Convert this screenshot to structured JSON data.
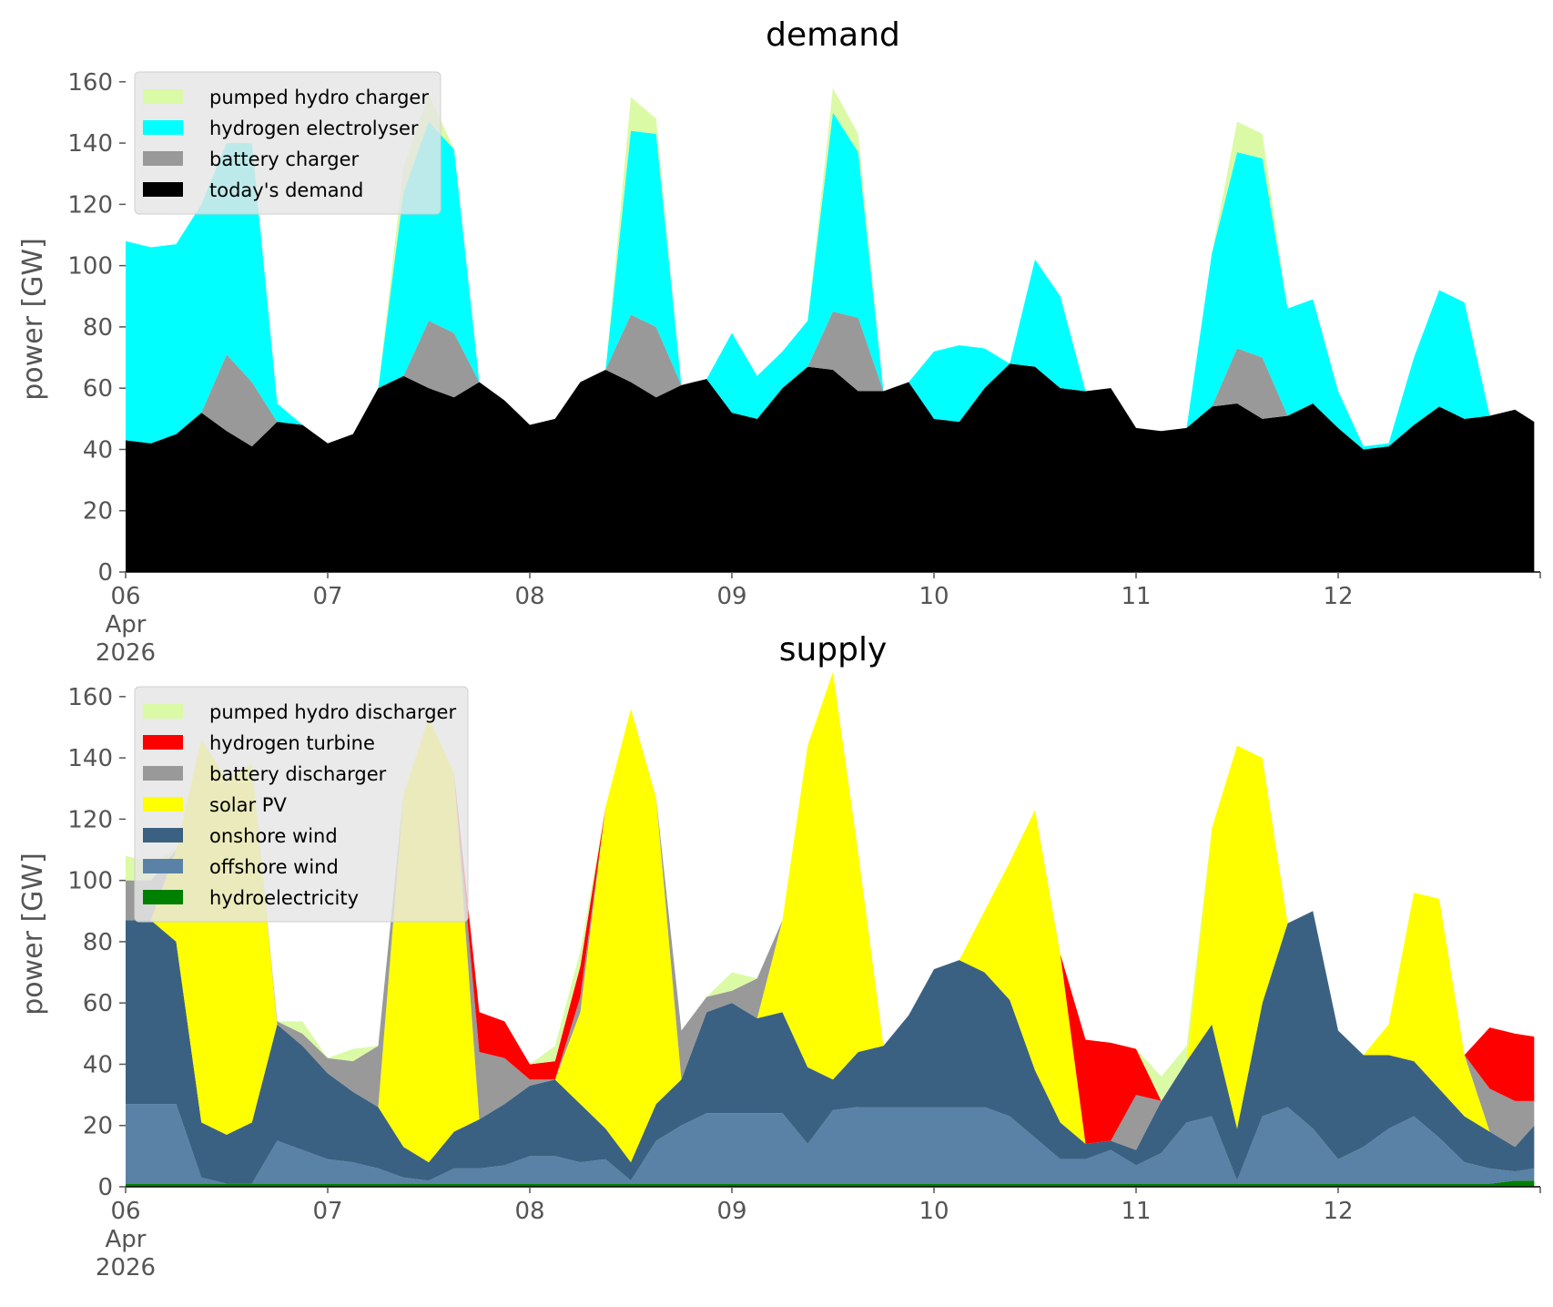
{
  "chart_data": [
    {
      "type": "area",
      "stacked": true,
      "title": "demand",
      "ylabel": "power [GW]",
      "xlabel": "",
      "ylim": [
        0,
        165
      ],
      "yticks": [
        0,
        20,
        40,
        60,
        80,
        100,
        120,
        140,
        160
      ],
      "xlim": [
        0,
        7
      ],
      "xticks": [
        {
          "x": 0,
          "label": "06",
          "sublabel": [
            "Apr",
            "2026"
          ]
        },
        {
          "x": 1,
          "label": "07"
        },
        {
          "x": 2,
          "label": "08"
        },
        {
          "x": 3,
          "label": "09"
        },
        {
          "x": 4,
          "label": "10"
        },
        {
          "x": 5,
          "label": "11"
        },
        {
          "x": 6,
          "label": "12"
        }
      ],
      "grid": false,
      "legend": "top-left",
      "x_unit": "days from 06 Apr 2026",
      "x": [
        0,
        0.125,
        0.25,
        0.375,
        0.5,
        0.625,
        0.75,
        0.875,
        1,
        1.125,
        1.25,
        1.375,
        1.5,
        1.625,
        1.75,
        1.875,
        2,
        2.125,
        2.25,
        2.375,
        2.5,
        2.625,
        2.75,
        2.875,
        3,
        3.125,
        3.25,
        3.375,
        3.5,
        3.625,
        3.75,
        3.875,
        4,
        4.125,
        4.25,
        4.375,
        4.5,
        4.625,
        4.75,
        4.875,
        5,
        5.125,
        5.25,
        5.375,
        5.5,
        5.625,
        5.75,
        5.875,
        6,
        6.125,
        6.25,
        6.375,
        6.5,
        6.625,
        6.75,
        6.875,
        6.97
      ],
      "series": [
        {
          "name": "today's demand",
          "color": "#000000",
          "values": [
            43,
            42,
            45,
            52,
            46,
            41,
            49,
            48,
            42,
            45,
            60,
            64,
            60,
            57,
            62,
            56,
            48,
            50,
            62,
            66,
            62,
            57,
            61,
            63,
            52,
            50,
            60,
            67,
            66,
            59,
            59,
            62,
            50,
            49,
            60,
            68,
            67,
            60,
            59,
            60,
            47,
            46,
            47,
            54,
            55,
            50,
            51,
            55,
            47,
            40,
            41,
            48,
            54,
            50,
            51,
            53,
            49
          ]
        },
        {
          "name": "battery charger",
          "color": "#999999",
          "values": [
            0,
            0,
            0,
            0,
            25,
            21,
            0,
            0,
            0,
            0,
            0,
            0,
            22,
            21,
            0,
            0,
            0,
            0,
            0,
            0,
            22,
            23,
            0,
            0,
            0,
            0,
            0,
            0,
            19,
            24,
            0,
            0,
            0,
            0,
            0,
            0,
            0,
            0,
            0,
            0,
            0,
            0,
            0,
            0,
            18,
            20,
            0,
            0,
            0,
            0,
            0,
            0,
            0,
            0,
            0,
            0,
            0
          ]
        },
        {
          "name": "hydrogen electrolyser",
          "color": "#00ffff",
          "values": [
            65,
            64,
            62,
            68,
            69,
            78,
            6,
            0,
            0,
            0,
            0,
            60,
            65,
            60,
            0,
            0,
            0,
            0,
            0,
            0,
            60,
            63,
            0,
            0,
            26,
            14,
            12,
            15,
            65,
            54,
            0,
            0,
            22,
            25,
            13,
            0,
            35,
            30,
            0,
            0,
            0,
            0,
            0,
            50,
            64,
            65,
            35,
            34,
            12,
            1,
            1,
            22,
            38,
            38,
            0,
            0,
            0
          ]
        },
        {
          "name": "pumped hydro charger",
          "color": "#dbfaa6",
          "values": [
            0,
            0,
            0,
            0,
            0,
            0,
            0,
            0,
            0,
            0,
            0,
            8,
            9,
            0,
            0,
            0,
            0,
            0,
            0,
            0,
            11,
            5,
            0,
            0,
            0,
            0,
            0,
            0,
            8,
            6,
            0,
            0,
            0,
            0,
            0,
            0,
            0,
            0,
            0,
            0,
            0,
            0,
            0,
            0,
            10,
            8,
            0,
            0,
            0,
            0,
            0,
            0,
            0,
            0,
            0,
            0,
            0
          ]
        }
      ],
      "legend_entries": [
        "pumped hydro charger",
        "hydrogen electrolyser",
        "battery charger",
        "today's demand"
      ]
    },
    {
      "type": "area",
      "stacked": true,
      "title": "supply",
      "ylabel": "power [GW]",
      "xlabel": "",
      "ylim": [
        0,
        165
      ],
      "yticks": [
        0,
        20,
        40,
        60,
        80,
        100,
        120,
        140,
        160
      ],
      "xlim": [
        0,
        7
      ],
      "xticks": [
        {
          "x": 0,
          "label": "06",
          "sublabel": [
            "Apr",
            "2026"
          ]
        },
        {
          "x": 1,
          "label": "07"
        },
        {
          "x": 2,
          "label": "08"
        },
        {
          "x": 3,
          "label": "09"
        },
        {
          "x": 4,
          "label": "10"
        },
        {
          "x": 5,
          "label": "11"
        },
        {
          "x": 6,
          "label": "12"
        }
      ],
      "grid": false,
      "legend": "top-left",
      "x_unit": "days from 06 Apr 2026",
      "x": [
        0,
        0.125,
        0.25,
        0.375,
        0.5,
        0.625,
        0.75,
        0.875,
        1,
        1.125,
        1.25,
        1.375,
        1.5,
        1.625,
        1.75,
        1.875,
        2,
        2.125,
        2.25,
        2.375,
        2.5,
        2.625,
        2.75,
        2.875,
        3,
        3.125,
        3.25,
        3.375,
        3.5,
        3.625,
        3.75,
        3.875,
        4,
        4.125,
        4.25,
        4.375,
        4.5,
        4.625,
        4.75,
        4.875,
        5,
        5.125,
        5.25,
        5.375,
        5.5,
        5.625,
        5.75,
        5.875,
        6,
        6.125,
        6.25,
        6.375,
        6.5,
        6.625,
        6.75,
        6.875,
        6.97
      ],
      "series": [
        {
          "name": "hydroelectricity",
          "color": "#008000",
          "values": [
            1,
            1,
            1,
            1,
            1,
            1,
            1,
            1,
            1,
            1,
            1,
            1,
            1,
            1,
            1,
            1,
            1,
            1,
            1,
            1,
            1,
            1,
            1,
            1,
            1,
            1,
            1,
            1,
            1,
            1,
            1,
            1,
            1,
            1,
            1,
            1,
            1,
            1,
            1,
            1,
            1,
            1,
            1,
            1,
            1,
            1,
            1,
            1,
            1,
            1,
            1,
            1,
            1,
            1,
            1,
            2,
            2
          ]
        },
        {
          "name": "offshore wind",
          "color": "#5a82a6",
          "values": [
            26,
            26,
            26,
            2,
            0,
            0,
            14,
            11,
            8,
            7,
            5,
            2,
            1,
            5,
            5,
            6,
            9,
            9,
            7,
            8,
            1,
            14,
            19,
            23,
            23,
            23,
            23,
            13,
            24,
            25,
            25,
            25,
            25,
            25,
            25,
            22,
            15,
            8,
            8,
            11,
            6,
            10,
            20,
            22,
            1,
            22,
            25,
            18,
            8,
            12,
            18,
            22,
            15,
            7,
            5,
            3,
            4
          ]
        },
        {
          "name": "onshore wind",
          "color": "#3b6182",
          "values": [
            60,
            60,
            53,
            18,
            16,
            20,
            38,
            34,
            28,
            23,
            20,
            10,
            6,
            12,
            16,
            20,
            23,
            25,
            19,
            10,
            6,
            12,
            15,
            33,
            36,
            31,
            33,
            25,
            10,
            18,
            20,
            30,
            45,
            48,
            44,
            38,
            22,
            12,
            5,
            3,
            5,
            17,
            20,
            30,
            17,
            37,
            60,
            71,
            42,
            30,
            24,
            18,
            16,
            15,
            12,
            8,
            14
          ]
        },
        {
          "name": "solar PV",
          "color": "#ffff00",
          "values": [
            0,
            0,
            30,
            125,
            116,
            117,
            0,
            0,
            0,
            0,
            0,
            115,
            145,
            117,
            0,
            0,
            0,
            0,
            30,
            105,
            148,
            100,
            0,
            0,
            0,
            0,
            30,
            105,
            133,
            65,
            0,
            0,
            0,
            0,
            20,
            45,
            85,
            55,
            0,
            0,
            0,
            0,
            0,
            64,
            125,
            80,
            0,
            0,
            0,
            0,
            10,
            55,
            62,
            20,
            0,
            0,
            0
          ]
        },
        {
          "name": "battery discharger",
          "color": "#999999",
          "values": [
            13,
            13,
            0,
            0,
            0,
            0,
            1,
            4,
            5,
            10,
            20,
            0,
            0,
            0,
            22,
            15,
            2,
            0,
            5,
            0,
            0,
            0,
            16,
            5,
            4,
            13,
            0,
            0,
            0,
            0,
            0,
            0,
            0,
            0,
            0,
            0,
            0,
            0,
            0,
            0,
            18,
            0,
            0,
            0,
            0,
            0,
            0,
            0,
            0,
            0,
            0,
            0,
            0,
            0,
            14,
            15,
            8
          ]
        },
        {
          "name": "hydrogen turbine",
          "color": "#ff0000",
          "values": [
            0,
            0,
            0,
            0,
            0,
            0,
            0,
            0,
            0,
            0,
            0,
            0,
            0,
            0,
            13,
            12,
            5,
            6,
            10,
            0,
            0,
            0,
            0,
            0,
            0,
            0,
            0,
            0,
            0,
            0,
            0,
            0,
            0,
            0,
            0,
            0,
            0,
            0,
            34,
            32,
            15,
            0,
            0,
            0,
            0,
            0,
            0,
            0,
            0,
            0,
            0,
            0,
            0,
            0,
            20,
            22,
            21
          ]
        },
        {
          "name": "pumped hydro discharger",
          "color": "#dbfaa6",
          "values": [
            8,
            6,
            0,
            0,
            0,
            0,
            0,
            4,
            0,
            4,
            0,
            0,
            0,
            0,
            0,
            0,
            0,
            5,
            5,
            0,
            0,
            0,
            0,
            0,
            6,
            0,
            0,
            0,
            0,
            0,
            0,
            0,
            0,
            0,
            0,
            0,
            0,
            0,
            0,
            0,
            0,
            8,
            5,
            0,
            0,
            0,
            0,
            0,
            0,
            0,
            0,
            0,
            0,
            0,
            0,
            0,
            0
          ]
        }
      ],
      "legend_entries": [
        "pumped hydro discharger",
        "hydrogen turbine",
        "battery discharger",
        "solar PV",
        "onshore wind",
        "offshore wind",
        "hydroelectricity"
      ]
    }
  ]
}
